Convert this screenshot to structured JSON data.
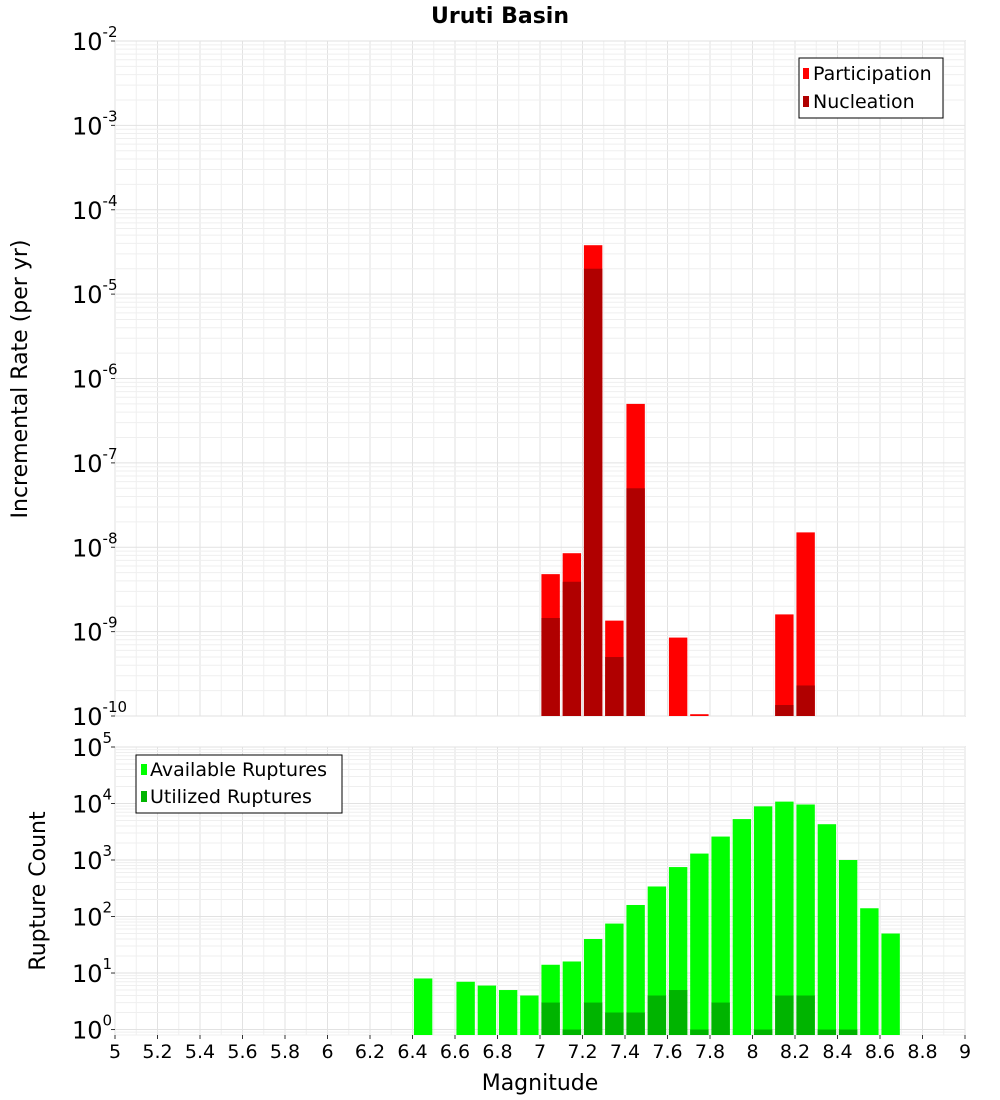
{
  "chart_data": [
    {
      "type": "bar",
      "title": "Uruti Basin",
      "xlabel": "",
      "ylabel": "Incremental Rate (per yr)",
      "yscale": "log",
      "ylim": [
        1e-10,
        0.01
      ],
      "xlim": [
        5,
        9
      ],
      "grid": true,
      "legend_position": "top-right",
      "legend": [
        "Participation",
        "Nucleation"
      ],
      "colors": {
        "Participation": "#ff0000",
        "Nucleation": "#b00000"
      },
      "y_ticks": [
        {
          "base": "10",
          "exp": "-2",
          "value": 0.01
        },
        {
          "base": "10",
          "exp": "-3",
          "value": 0.001
        },
        {
          "base": "10",
          "exp": "-4",
          "value": 0.0001
        },
        {
          "base": "10",
          "exp": "-5",
          "value": 1e-05
        },
        {
          "base": "10",
          "exp": "-6",
          "value": 1e-06
        },
        {
          "base": "10",
          "exp": "-7",
          "value": 1e-07
        },
        {
          "base": "10",
          "exp": "-8",
          "value": 1e-08
        },
        {
          "base": "10",
          "exp": "-9",
          "value": 1e-09
        },
        {
          "base": "10",
          "exp": "-10",
          "value": 1e-10
        }
      ],
      "series": [
        {
          "name": "Participation",
          "x": [
            7.05,
            7.15,
            7.25,
            7.35,
            7.45,
            7.65,
            7.75,
            8.15,
            8.25
          ],
          "values": [
            4.8e-09,
            8.5e-09,
            3.8e-05,
            1.35e-09,
            5e-07,
            8.5e-10,
            1.05e-10,
            1.6e-09,
            1.5e-08
          ]
        },
        {
          "name": "Nucleation",
          "x": [
            7.05,
            7.15,
            7.25,
            7.35,
            7.45,
            8.15,
            8.25
          ],
          "values": [
            1.45e-09,
            3.9e-09,
            2e-05,
            5e-10,
            5e-08,
            1.35e-10,
            2.3e-10
          ]
        }
      ]
    },
    {
      "type": "bar",
      "title": "",
      "xlabel": "Magnitude",
      "ylabel": "Rupture Count",
      "yscale": "log",
      "ylim": [
        0.8,
        100000.0
      ],
      "xlim": [
        5,
        9
      ],
      "grid": true,
      "legend_position": "top-left",
      "legend": [
        "Available Ruptures",
        "Utilized Ruptures"
      ],
      "colors": {
        "Available Ruptures": "#00ff00",
        "Utilized Ruptures": "#00b400"
      },
      "x_ticks": [
        "5",
        "5.2",
        "5.4",
        "5.6",
        "5.8",
        "6",
        "6.2",
        "6.4",
        "6.6",
        "6.8",
        "7",
        "7.2",
        "7.4",
        "7.6",
        "7.8",
        "8",
        "8.2",
        "8.4",
        "8.6",
        "8.8",
        "9"
      ],
      "y_ticks": [
        {
          "base": "10",
          "exp": "0",
          "value": 1
        },
        {
          "base": "10",
          "exp": "1",
          "value": 10
        },
        {
          "base": "10",
          "exp": "2",
          "value": 100
        },
        {
          "base": "10",
          "exp": "3",
          "value": 1000
        },
        {
          "base": "10",
          "exp": "4",
          "value": 10000
        },
        {
          "base": "10",
          "exp": "5",
          "value": 100000
        }
      ],
      "series": [
        {
          "name": "Available Ruptures",
          "x": [
            6.45,
            6.55,
            6.65,
            6.75,
            6.85,
            6.95,
            7.05,
            7.15,
            7.25,
            7.35,
            7.45,
            7.55,
            7.65,
            7.75,
            7.85,
            7.95,
            8.05,
            8.15,
            8.25,
            8.35,
            8.45,
            8.55,
            8.65
          ],
          "values": [
            8,
            0,
            7,
            6,
            5,
            4,
            14,
            16,
            40,
            75,
            160,
            340,
            750,
            1300,
            2600,
            5300,
            8900,
            10800,
            9600,
            4300,
            1000,
            140,
            50
          ]
        },
        {
          "name": "Utilized Ruptures",
          "x": [
            7.05,
            7.15,
            7.25,
            7.35,
            7.45,
            7.55,
            7.65,
            7.75,
            7.85,
            7.95,
            8.05,
            8.15,
            8.25,
            8.35,
            8.45
          ],
          "values": [
            3,
            1,
            3,
            2,
            2,
            4,
            5,
            1,
            3,
            0,
            1,
            4,
            4,
            1,
            1
          ]
        }
      ]
    }
  ]
}
